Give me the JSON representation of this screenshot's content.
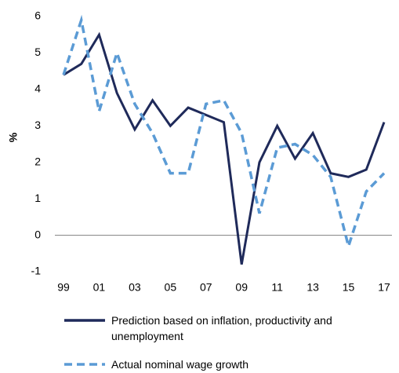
{
  "chart_data": {
    "type": "line",
    "y_label": "%",
    "categories": [
      "99",
      null,
      "01",
      null,
      "03",
      null,
      "05",
      null,
      "07",
      null,
      "09",
      null,
      "11",
      null,
      "13",
      null,
      "15",
      null,
      "17"
    ],
    "series": [
      {
        "name": "Prediction based on inflation, productivity and unemployment",
        "color": "#1f2a5a",
        "dash": "solid",
        "values": [
          4.4,
          4.7,
          5.5,
          3.9,
          2.9,
          3.7,
          3.0,
          3.5,
          3.3,
          3.1,
          -0.8,
          2.0,
          3.0,
          2.1,
          2.8,
          1.7,
          1.6,
          1.8,
          3.1
        ]
      },
      {
        "name": "Actual nominal wage growth",
        "color": "#5b9bd5",
        "dash": "dashed",
        "values": [
          4.4,
          5.9,
          3.4,
          5.0,
          3.6,
          2.8,
          1.7,
          1.7,
          3.6,
          3.7,
          2.8,
          0.6,
          2.4,
          2.5,
          2.2,
          1.6,
          -0.3,
          1.2,
          1.7
        ]
      }
    ],
    "ylim": [
      -1,
      6
    ],
    "yticks": [
      -1,
      0,
      1,
      2,
      3,
      4,
      5,
      6
    ]
  }
}
